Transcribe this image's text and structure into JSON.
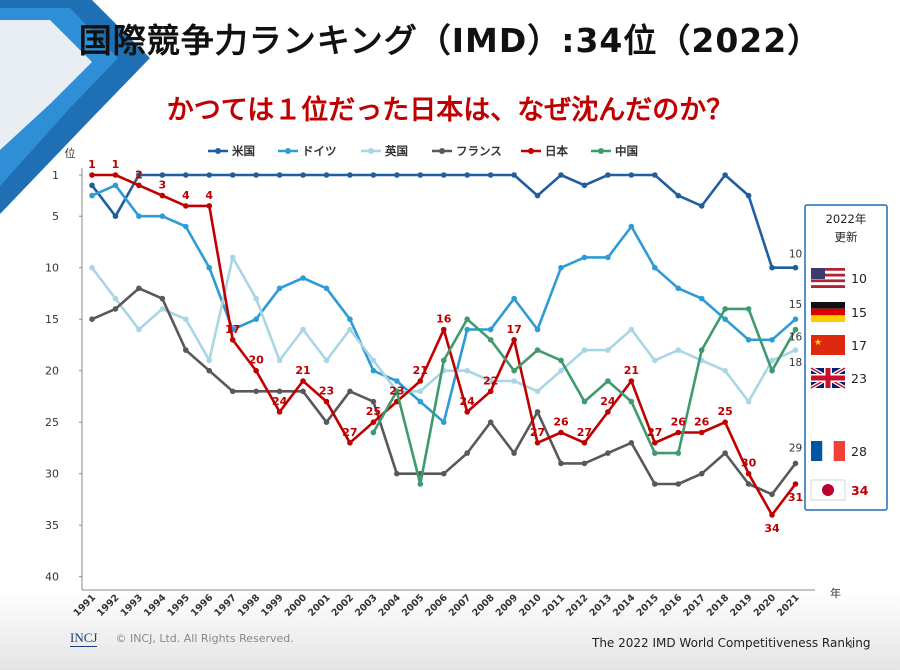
{
  "title": "国際競争力ランキング（IMD）:34位（2022）",
  "subtitle": "かつては１位だった日本は、なぜ沈んだのか？",
  "footer": {
    "logo": "INCJ",
    "copyright": "© INCJ, Ltd. All Rights Reserved.",
    "source": "The 2022 IMD World Competitiveness Ranking",
    "page": "1"
  },
  "colors": {
    "米国": "#1f5f9e",
    "ドイツ": "#2e9bd6",
    "英国": "#a9d6e5",
    "フランス": "#595959",
    "日本": "#c00000",
    "中国": "#3f9a6e"
  },
  "chart_data": {
    "type": "line",
    "ylabel": "位",
    "xlabel": "年",
    "ylim": [
      1,
      40
    ],
    "y_inverted": true,
    "y_ticks": [
      1,
      5,
      10,
      15,
      20,
      25,
      30,
      35,
      40
    ],
    "x": [
      "1991",
      "1992",
      "1993",
      "1994",
      "1995",
      "1996",
      "1997",
      "1998",
      "1999",
      "2000",
      "2001",
      "2002",
      "2003",
      "2004",
      "2005",
      "2006",
      "2007",
      "2008",
      "2009",
      "2010",
      "2011",
      "2012",
      "2013",
      "2014",
      "2015",
      "2016",
      "2017",
      "2018",
      "2019",
      "2020",
      "2021"
    ],
    "series": [
      {
        "name": "米国",
        "values": [
          2,
          5,
          1,
          1,
          1,
          1,
          1,
          1,
          1,
          1,
          1,
          1,
          1,
          1,
          1,
          1,
          1,
          1,
          1,
          3,
          1,
          2,
          1,
          1,
          1,
          3,
          4,
          1,
          3,
          10,
          10
        ]
      },
      {
        "name": "ドイツ",
        "values": [
          3,
          2,
          5,
          5,
          6,
          10,
          16,
          15,
          12,
          11,
          12,
          15,
          20,
          21,
          23,
          25,
          16,
          16,
          13,
          16,
          10,
          9,
          9,
          6,
          10,
          12,
          13,
          15,
          17,
          17,
          15
        ]
      },
      {
        "name": "英国",
        "values": [
          10,
          13,
          16,
          14,
          15,
          19,
          9,
          13,
          19,
          16,
          19,
          16,
          19,
          22,
          22,
          20,
          20,
          21,
          21,
          22,
          20,
          18,
          18,
          16,
          19,
          18,
          19,
          20,
          23,
          19,
          18
        ]
      },
      {
        "name": "フランス",
        "values": [
          15,
          14,
          12,
          13,
          18,
          20,
          22,
          22,
          22,
          22,
          25,
          22,
          23,
          30,
          30,
          30,
          28,
          25,
          28,
          24,
          29,
          29,
          28,
          27,
          31,
          31,
          30,
          28,
          31,
          32,
          29
        ]
      },
      {
        "name": "日本",
        "values": [
          1,
          1,
          2,
          3,
          4,
          4,
          17,
          20,
          24,
          21,
          23,
          27,
          25,
          23,
          21,
          16,
          24,
          22,
          17,
          27,
          26,
          27,
          24,
          21,
          27,
          26,
          26,
          25,
          30,
          34,
          31
        ]
      },
      {
        "name": "中国",
        "values": [
          null,
          null,
          null,
          null,
          null,
          null,
          null,
          null,
          null,
          null,
          null,
          null,
          26,
          22,
          31,
          19,
          15,
          17,
          20,
          18,
          19,
          23,
          21,
          23,
          28,
          28,
          18,
          14,
          14,
          20,
          16
        ]
      }
    ],
    "data_labels": {
      "日本": [
        "1",
        "1",
        "2",
        "3",
        "4",
        "4",
        "17",
        "20",
        "24",
        "21",
        "23",
        "27",
        "25",
        "23",
        "21",
        "16",
        "24",
        "22",
        "17",
        "27",
        "26",
        "27",
        "24",
        "21",
        "27",
        "26",
        "26",
        "25",
        "30",
        "34",
        "31"
      ],
      "end": [
        {
          "series": "米国",
          "text": "10"
        },
        {
          "series": "ドイツ",
          "text": "15"
        },
        {
          "series": "中国",
          "text": "16"
        },
        {
          "series": "英国",
          "text": "18"
        },
        {
          "series": "フランス",
          "text": "29"
        }
      ]
    },
    "right_panel": {
      "title_line1": "2022年",
      "title_line2": "更新",
      "items": [
        {
          "country": "米国",
          "flag": "us-flag",
          "rank": "10"
        },
        {
          "country": "ドイツ",
          "flag": "de-flag",
          "rank": "15"
        },
        {
          "country": "中国",
          "flag": "cn-flag",
          "rank": "17"
        },
        {
          "country": "英国",
          "flag": "uk-flag",
          "rank": "23"
        },
        {
          "country": "フランス",
          "flag": "fr-flag",
          "rank": "28"
        },
        {
          "country": "日本",
          "flag": "jp-flag",
          "rank": "34"
        }
      ]
    }
  }
}
